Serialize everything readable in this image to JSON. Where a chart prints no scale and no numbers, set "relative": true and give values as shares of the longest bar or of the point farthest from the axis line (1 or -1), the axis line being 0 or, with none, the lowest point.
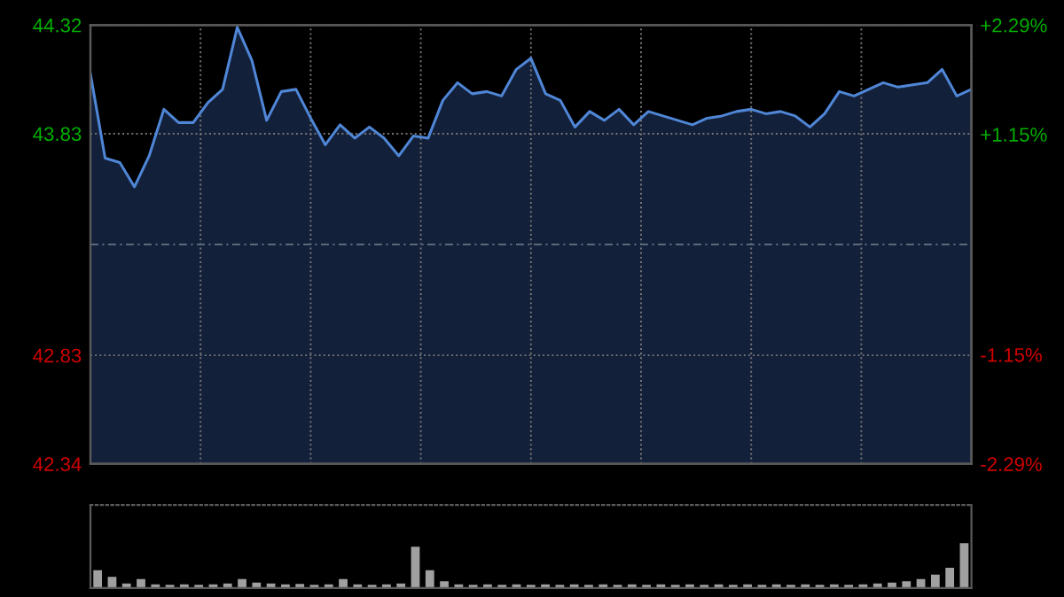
{
  "chart_data": [
    {
      "type": "area",
      "series": [
        {
          "color": "#4f86d6",
          "values": [
            44.1,
            43.72,
            43.7,
            43.59,
            43.73,
            43.94,
            43.88,
            43.88,
            43.97,
            44.03,
            44.31,
            44.16,
            43.89,
            44.02,
            44.03,
            43.9,
            43.78,
            43.87,
            43.81,
            43.86,
            43.81,
            43.73,
            43.82,
            43.81,
            43.98,
            44.06,
            44.01,
            44.02,
            44.0,
            44.12,
            44.17,
            44.01,
            43.98,
            43.86,
            43.93,
            43.89,
            43.94,
            43.87,
            43.93,
            43.91,
            43.89,
            43.87,
            43.9,
            43.91,
            43.93,
            43.94,
            43.92,
            43.93,
            43.91,
            43.86,
            43.92,
            44.02,
            44.0,
            44.03,
            44.06,
            44.04,
            44.05,
            44.06,
            44.12,
            44.0,
            44.03
          ]
        }
      ],
      "categories": [
        null,
        null,
        null,
        null,
        null,
        null,
        null,
        null,
        null,
        null,
        null,
        null,
        null,
        null,
        null,
        null,
        null,
        null,
        null,
        null,
        null,
        null,
        null,
        null,
        null,
        null,
        null,
        null,
        null,
        null,
        null,
        null,
        null,
        null,
        null,
        null,
        null,
        null,
        null,
        null,
        null,
        null,
        null,
        null,
        null,
        null,
        null,
        null,
        null,
        null,
        null,
        null,
        null,
        null,
        null,
        null,
        null,
        null,
        null,
        null,
        null
      ],
      "ylim": [
        42.34,
        44.32
      ],
      "yticks": [
        44.32,
        43.83,
        42.83,
        42.34
      ],
      "y2lim": [
        -2.29,
        2.29
      ],
      "y2ticks": [
        {
          "value": 2.29,
          "label": "+2.29%"
        },
        {
          "value": 1.15,
          "label": "+1.15%"
        },
        {
          "value": -1.15,
          "label": "-1.15%"
        },
        {
          "value": -2.29,
          "label": "-2.29%"
        }
      ],
      "ref_lines": [
        {
          "axis": "y",
          "value": 43.33,
          "line_style": "dashed",
          "color": "#5a6a7a"
        }
      ],
      "grid": true,
      "tick_labels": "y"
    },
    {
      "type": "bar",
      "relative": true,
      "color": "#a0a0a0",
      "categories": [
        null,
        null,
        null,
        null,
        null,
        null,
        null,
        null,
        null,
        null,
        null,
        null,
        null,
        null,
        null,
        null,
        null,
        null,
        null,
        null,
        null,
        null,
        null,
        null,
        null,
        null,
        null,
        null,
        null,
        null,
        null,
        null,
        null,
        null,
        null,
        null,
        null,
        null,
        null,
        null,
        null,
        null,
        null,
        null,
        null,
        null,
        null,
        null,
        null,
        null,
        null,
        null,
        null,
        null,
        null,
        null,
        null,
        null,
        null,
        null,
        null
      ],
      "values": [
        0.4,
        0.25,
        0.1,
        0.2,
        0.08,
        0.07,
        0.08,
        0.07,
        0.08,
        0.1,
        0.2,
        0.12,
        0.1,
        0.08,
        0.09,
        0.07,
        0.08,
        0.2,
        0.08,
        0.07,
        0.08,
        0.1,
        0.92,
        0.4,
        0.15,
        0.08,
        0.07,
        0.08,
        0.07,
        0.08,
        0.07,
        0.08,
        0.07,
        0.08,
        0.07,
        0.08,
        0.07,
        0.08,
        0.07,
        0.08,
        0.07,
        0.08,
        0.07,
        0.08,
        0.07,
        0.08,
        0.07,
        0.08,
        0.07,
        0.08,
        0.07,
        0.08,
        0.07,
        0.08,
        0.1,
        0.12,
        0.15,
        0.2,
        0.3,
        0.45,
        1.0
      ]
    }
  ]
}
